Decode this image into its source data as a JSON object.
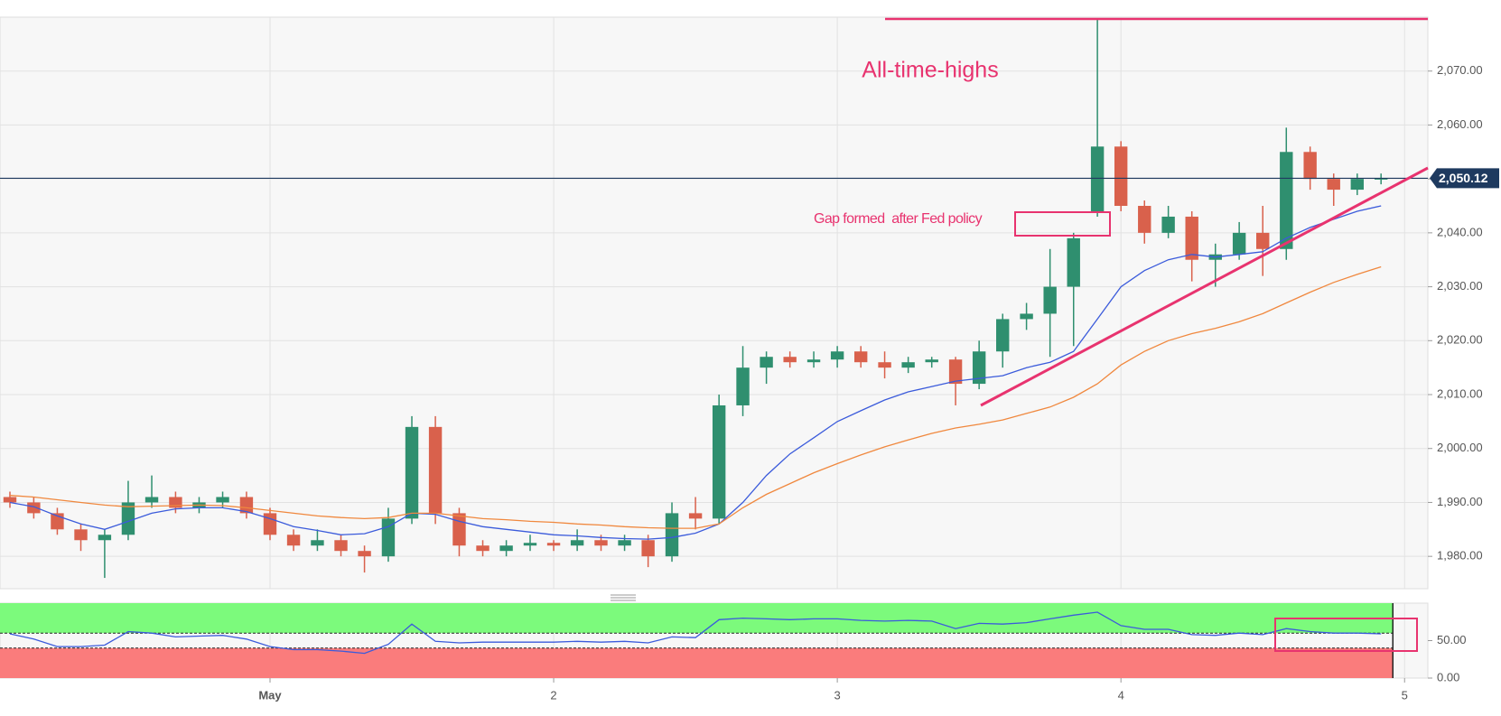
{
  "chart_data": [
    {
      "type": "candlestick",
      "annotations": [
        "All-time-highs",
        "Gap formed  after Fed policy"
      ],
      "up_color": "#2f8f6f",
      "down_color": "#d9614c",
      "x": [
        0.083,
        0.167,
        0.25,
        0.333,
        0.417,
        0.5,
        0.583,
        0.667,
        0.75,
        0.833,
        0.917,
        1,
        1.083,
        1.167,
        1.25,
        1.333,
        1.417,
        1.5,
        1.583,
        1.667,
        1.75,
        1.833,
        1.917,
        2,
        2.083,
        2.167,
        2.25,
        2.333,
        2.417,
        2.5,
        2.583,
        2.667,
        2.75,
        2.833,
        2.917,
        3,
        3.083,
        3.167,
        3.25,
        3.333,
        3.417,
        3.5,
        3.583,
        3.667,
        3.75,
        3.833,
        3.917,
        4,
        4.083,
        4.167,
        4.25,
        4.333,
        4.417,
        4.5,
        4.583,
        4.667,
        4.75,
        4.833,
        4.917
      ],
      "open": [
        1991,
        1990,
        1988,
        1985,
        1983,
        1984,
        1990,
        1991,
        1989,
        1990,
        1991,
        1988,
        1984,
        1982,
        1983,
        1981,
        1980,
        1987,
        2004,
        1988,
        1982,
        1981,
        1982,
        1982.5,
        1982,
        1983,
        1982,
        1983,
        1980,
        1988,
        1987,
        2008,
        2015,
        2017,
        2016,
        2016.5,
        2018,
        2016,
        2015,
        2016,
        2016.5,
        2012,
        2018,
        2024,
        2025,
        2030,
        2044,
        2056,
        2045,
        2040,
        2043,
        2035,
        2036,
        2040,
        2037,
        2055,
        2050,
        2048,
        2050
      ],
      "high": [
        1992,
        1991,
        1989,
        1986,
        1985,
        1994,
        1995,
        1992,
        1991,
        1992,
        1992,
        1989,
        1985,
        1985,
        1984,
        1982,
        1989,
        2006,
        2006,
        1989,
        1983,
        1983,
        1984,
        1983,
        1985,
        1984,
        1984,
        1984,
        1990,
        1991,
        2010,
        2019,
        2018,
        2018,
        2018,
        2019,
        2019,
        2018,
        2017,
        2017,
        2017,
        2020,
        2025,
        2027,
        2037,
        2040,
        2079.5,
        2057,
        2046,
        2045,
        2044,
        2038,
        2042,
        2045,
        2059.5,
        2056,
        2051,
        2051,
        2051
      ],
      "low": [
        1989,
        1987,
        1984,
        1981,
        1976,
        1983,
        1989,
        1988,
        1988,
        1989,
        1987,
        1983,
        1981,
        1981,
        1980,
        1977,
        1979,
        1986,
        1986,
        1980,
        1980,
        1980,
        1981,
        1981,
        1981,
        1981,
        1981,
        1978,
        1979,
        1985,
        1986,
        2006,
        2012,
        2015,
        2015,
        2015,
        2015,
        2013,
        2014,
        2015,
        2008,
        2011,
        2015,
        2022,
        2017,
        2019,
        2043,
        2044,
        2038,
        2039,
        2031,
        2030,
        2035,
        2032,
        2035,
        2048,
        2045,
        2047,
        2049
      ],
      "close": [
        1990,
        1988,
        1985,
        1983,
        1984,
        1990,
        1991,
        1989,
        1990,
        1991,
        1988,
        1984,
        1982,
        1983,
        1981,
        1980,
        1987,
        2004,
        1988,
        1982,
        1981,
        1982,
        1982.5,
        1982,
        1983,
        1982,
        1983,
        1980,
        1988,
        1987,
        2008,
        2015,
        2017,
        2016,
        2016.5,
        2018,
        2016,
        2015,
        2016,
        2016.5,
        2012,
        2018,
        2024,
        2025,
        2030,
        2039,
        2056,
        2045,
        2040,
        2043,
        2035,
        2036,
        2040,
        2037,
        2055,
        2050,
        2048,
        2050,
        2050.12
      ],
      "overlays": [
        {
          "color": "#3b5bdb",
          "values": [
            1990,
            1989.2,
            1987.5,
            1986,
            1985,
            1986.5,
            1988,
            1988.8,
            1989,
            1989,
            1988.3,
            1987,
            1985.5,
            1984.8,
            1984,
            1984.2,
            1985.5,
            1988,
            1987.8,
            1986.5,
            1985.5,
            1985,
            1984.5,
            1984,
            1983.8,
            1983.5,
            1983.3,
            1983.2,
            1983.5,
            1984.3,
            1986,
            1990,
            1995,
            1999,
            2002,
            2005,
            2007,
            2009,
            2010.5,
            2011.5,
            2012.5,
            2013,
            2013.5,
            2015,
            2016,
            2018,
            2024,
            2030,
            2033,
            2035,
            2036,
            2035.5,
            2036,
            2036.5,
            2039,
            2041,
            2042.5,
            2044,
            2045
          ]
        },
        {
          "color": "#f0883e",
          "values": [
            1991.3,
            1991,
            1990.5,
            1990,
            1989.5,
            1989.2,
            1989.3,
            1989.4,
            1989.5,
            1989.4,
            1989,
            1988.5,
            1988,
            1987.5,
            1987.2,
            1987,
            1987.2,
            1988,
            1988,
            1987.5,
            1987,
            1986.8,
            1986.5,
            1986.3,
            1986,
            1985.8,
            1985.5,
            1985.3,
            1985.2,
            1985.2,
            1986,
            1989,
            1991.5,
            1993.5,
            1995.5,
            1997.2,
            1998.8,
            2000.3,
            2001.6,
            2002.8,
            2003.8,
            2004.5,
            2005.3,
            2006.5,
            2007.7,
            2009.5,
            2012,
            2015.5,
            2018,
            2020,
            2021.3,
            2022.3,
            2023.5,
            2025,
            2027,
            2029,
            2030.8,
            2032.3,
            2033.7
          ]
        }
      ],
      "last_price": {
        "value": 2050.12,
        "label": "2,050.12"
      },
      "xlim": [
        0.048,
        5.082
      ],
      "xticks": [
        {
          "value": 1,
          "label": "May"
        },
        2,
        3,
        4,
        5
      ],
      "ylim": [
        1974,
        2080
      ],
      "yticks": [
        {
          "value": 1980,
          "label": "1,980.00"
        },
        {
          "value": 1990,
          "label": "1,990.00"
        },
        {
          "value": 2000,
          "label": "2,000.00"
        },
        {
          "value": 2010,
          "label": "2,010.00"
        },
        {
          "value": 2020,
          "label": "2,020.00"
        },
        {
          "value": 2030,
          "label": "2,030.00"
        },
        {
          "value": 2040,
          "label": "2,040.00"
        },
        {
          "value": 2050,
          "label": "2,050.00"
        },
        {
          "value": 2060,
          "label": "2,060.00"
        },
        {
          "value": 2070,
          "label": "2,070.00"
        }
      ],
      "grid": true
    },
    {
      "type": "line",
      "color": "#3b5bdb",
      "values": [
        59,
        52,
        42,
        42,
        44,
        62,
        60,
        55,
        56,
        57,
        52,
        42,
        38,
        38,
        36,
        33,
        45,
        72,
        49,
        47,
        48,
        48,
        48,
        48,
        49,
        48,
        49,
        47,
        55,
        54,
        78,
        80,
        79,
        78,
        79,
        79,
        77,
        76,
        77,
        76,
        66,
        73,
        72,
        74,
        79,
        84,
        88,
        70,
        65,
        65,
        58,
        57,
        60,
        58,
        66,
        62,
        60,
        60,
        59
      ],
      "upper_band": 60,
      "lower_band": 40,
      "upper_color": "#7cfa7c",
      "lower_color": "#fa7c7c",
      "ylim": [
        0,
        100
      ],
      "yticks": [
        {
          "value": 50,
          "label": "50.00"
        },
        {
          "value": 0,
          "label": "0.00"
        }
      ]
    }
  ]
}
